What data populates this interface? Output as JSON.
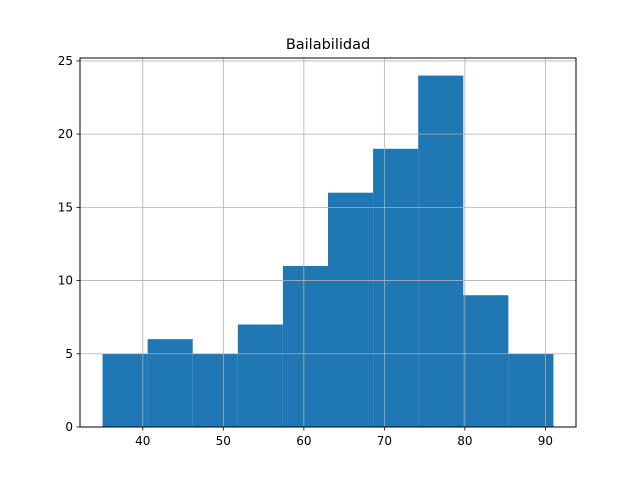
{
  "chart_data": {
    "type": "bar",
    "title": "Bailabilidad",
    "xlabel": "",
    "ylabel": "",
    "bins": [
      {
        "x0": 35.0,
        "x1": 40.6,
        "count": 5
      },
      {
        "x0": 40.6,
        "x1": 46.2,
        "count": 6
      },
      {
        "x0": 46.2,
        "x1": 51.8,
        "count": 5
      },
      {
        "x0": 51.8,
        "x1": 57.4,
        "count": 7
      },
      {
        "x0": 57.4,
        "x1": 63.0,
        "count": 11
      },
      {
        "x0": 63.0,
        "x1": 68.6,
        "count": 16
      },
      {
        "x0": 68.6,
        "x1": 74.2,
        "count": 19
      },
      {
        "x0": 74.2,
        "x1": 79.8,
        "count": 24
      },
      {
        "x0": 79.8,
        "x1": 85.4,
        "count": 9
      },
      {
        "x0": 85.4,
        "x1": 91.0,
        "count": 5
      }
    ],
    "xlim": [
      32.2,
      93.8
    ],
    "ylim": [
      0,
      25.2
    ],
    "xticks": [
      40,
      50,
      60,
      70,
      80,
      90
    ],
    "yticks": [
      0,
      5,
      10,
      15,
      20,
      25
    ],
    "grid": true,
    "bar_color": "#1f77b4",
    "grid_color": "#b0b0b0"
  }
}
